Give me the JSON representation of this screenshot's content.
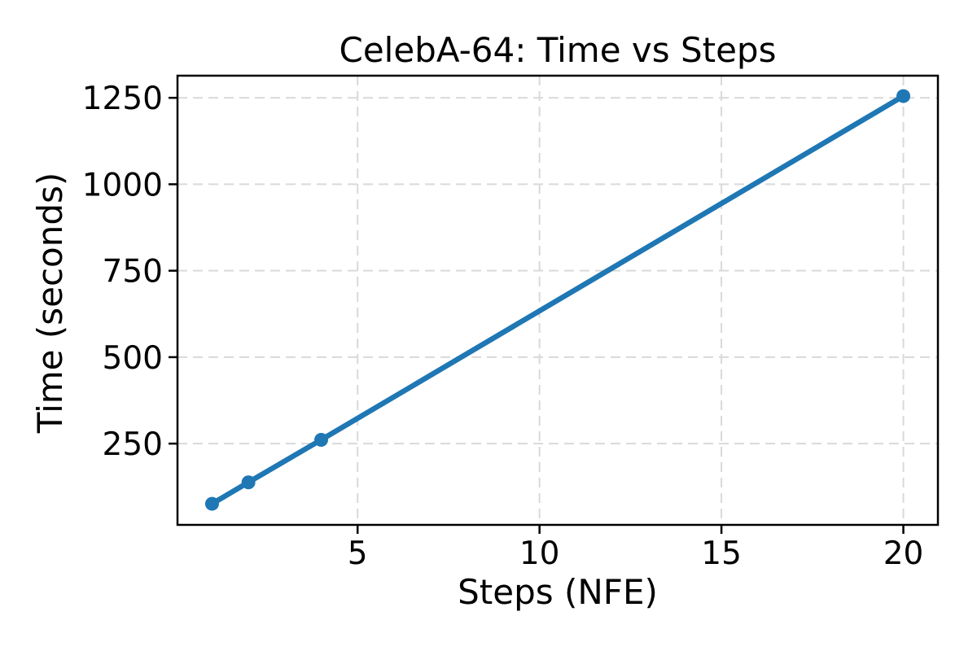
{
  "figure": {
    "background": "#ffffff"
  },
  "chart_data": {
    "type": "line",
    "title": "CelebA-64: Time vs Steps",
    "xlabel": "Steps (NFE)",
    "ylabel": "Time (seconds)",
    "series": [
      {
        "name": "time-vs-steps",
        "x": [
          1,
          2,
          4,
          20
        ],
        "y": [
          76,
          138,
          261,
          1255
        ],
        "color": "#1f77b4",
        "marker": "circle",
        "marker_size": 8.5,
        "line_width": 6.5
      }
    ],
    "xlim": [
      0.05,
      20.95
    ],
    "ylim": [
      15,
      1314
    ],
    "xticks": [
      5,
      10,
      15,
      20
    ],
    "yticks": [
      250,
      500,
      750,
      1000,
      1250
    ],
    "grid": true,
    "grid_style": "dashed",
    "grid_color": "#d9d9d9",
    "axis_color": "#000000",
    "legend_position": "none"
  }
}
